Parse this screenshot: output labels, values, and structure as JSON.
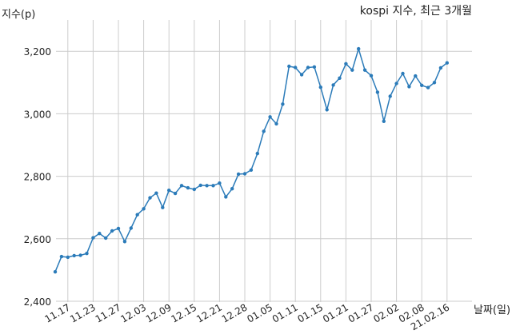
{
  "chart_data": {
    "type": "line",
    "title": "kospi 지수, 최근 3개월",
    "xlabel": "날짜(일)",
    "ylabel": "지수(p)",
    "ylim": [
      2400,
      3300
    ],
    "yticks": [
      2400,
      2600,
      2800,
      3000,
      3200
    ],
    "ytick_labels": [
      "2,400",
      "2,600",
      "2,800",
      "3,000",
      "3,200"
    ],
    "grid": true,
    "line_color": "#2b7bb9",
    "xtick_labels": [
      "11.17",
      "11.23",
      "11.27",
      "12.03",
      "12.09",
      "12.15",
      "12.21",
      "12.28",
      "01.05",
      "01.11",
      "01.15",
      "01.21",
      "01.27",
      "02.02",
      "02.08",
      "21.02.16"
    ],
    "xtick_index": [
      2,
      6,
      10,
      14,
      18,
      22,
      26,
      30,
      34,
      38,
      42,
      46,
      50,
      54,
      58,
      62
    ],
    "values": [
      2494,
      2543,
      2541,
      2546,
      2547,
      2553,
      2603,
      2617,
      2602,
      2625,
      2633,
      2591,
      2634,
      2677,
      2696,
      2731,
      2746,
      2700,
      2755,
      2745,
      2770,
      2763,
      2758,
      2771,
      2770,
      2770,
      2778,
      2734,
      2760,
      2807,
      2808,
      2820,
      2873,
      2944,
      2990,
      2968,
      3031,
      3152,
      3148,
      3125,
      3148,
      3150,
      3085,
      3013,
      3092,
      3114,
      3160,
      3140,
      3208,
      3140,
      3122,
      3069,
      2976,
      3056,
      3097,
      3129,
      3087,
      3121,
      3091,
      3084,
      3100,
      3147,
      3163
    ]
  }
}
